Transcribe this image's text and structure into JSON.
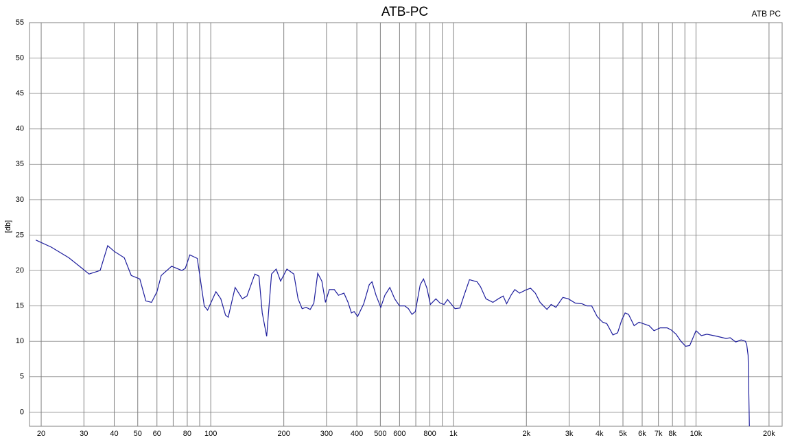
{
  "chart_data": {
    "type": "line",
    "title": "ATB-PC",
    "ylabel": "[db]",
    "xscale": "log",
    "grid": true,
    "legend": "top-right",
    "xlim": [
      17.9,
      22650
    ],
    "ylim": [
      -2,
      55
    ],
    "yticks": [
      0,
      5,
      10,
      15,
      20,
      25,
      30,
      35,
      40,
      45,
      50,
      55
    ],
    "xticks": [
      20,
      30,
      40,
      50,
      60,
      {
        "value": 70,
        "label": null
      },
      80,
      {
        "value": 90,
        "label": null
      },
      100,
      200,
      300,
      400,
      500,
      600,
      {
        "value": 700,
        "label": null
      },
      800,
      {
        "value": 900,
        "label": null
      },
      {
        "value": 1000,
        "label": "1k"
      },
      {
        "value": 2000,
        "label": "2k"
      },
      {
        "value": 3000,
        "label": "3k"
      },
      {
        "value": 4000,
        "label": "4k"
      },
      {
        "value": 5000,
        "label": "5k"
      },
      {
        "value": 6000,
        "label": "6k"
      },
      {
        "value": 7000,
        "label": "7k"
      },
      {
        "value": 8000,
        "label": "8k"
      },
      {
        "value": 9000,
        "label": null
      },
      {
        "value": 10000,
        "label": "10k"
      },
      {
        "value": 20000,
        "label": "20k"
      }
    ],
    "x": [
      19,
      22,
      26,
      29,
      31.5,
      35,
      37.6,
      40,
      44,
      47,
      51,
      54,
      57,
      60,
      62.5,
      69,
      76,
      78.5,
      82,
      88,
      94,
      97,
      105,
      110,
      115,
      118,
      126,
      135,
      141,
      152,
      158,
      163,
      170,
      178,
      186,
      194,
      206,
      220,
      229,
      238,
      247,
      257,
      266,
      276,
      287,
      297,
      308,
      323,
      336,
      354,
      368,
      380,
      390,
      403,
      427,
      450,
      462,
      480,
      502,
      522,
      547,
      573,
      600,
      631,
      653,
      675,
      697,
      730,
      753,
      778,
      804,
      847,
      881,
      916,
      946,
      978,
      1016,
      1064,
      1107,
      1165,
      1252,
      1294,
      1362,
      1455,
      1532,
      1604,
      1657,
      1734,
      1791,
      1875,
      1974,
      2080,
      2177,
      2277,
      2431,
      2528,
      2647,
      2826,
      2977,
      3179,
      3393,
      3550,
      3716,
      3915,
      4123,
      4288,
      4545,
      4753,
      4942,
      5104,
      5272,
      5559,
      5821,
      6414,
      6715,
      7123,
      7603,
      7906,
      8278,
      8669,
      9066,
      9424,
      10000,
      10520,
      11090,
      12230,
      13300,
      13830,
      14580,
      15350,
      15990,
      16190,
      16400,
      16600
    ],
    "series": [
      {
        "name": "ATB PC",
        "color": "#1c1c9c",
        "values": [
          24.3,
          23.3,
          21.8,
          20.5,
          19.5,
          20,
          23.5,
          22.7,
          21.8,
          19.3,
          18.8,
          15.7,
          15.5,
          17,
          19.3,
          20.6,
          20,
          20.3,
          22.2,
          21.7,
          15,
          14.4,
          17,
          16,
          13.7,
          13.4,
          17.6,
          16,
          16.4,
          19.5,
          19.2,
          14,
          10.7,
          19.5,
          20.2,
          18.5,
          20.2,
          19.5,
          16,
          14.6,
          14.8,
          14.5,
          15.4,
          19.6,
          18.5,
          15.5,
          17.3,
          17.3,
          16.5,
          16.8,
          15.5,
          14,
          14.2,
          13.5,
          15.3,
          18,
          18.4,
          16.5,
          14.8,
          16.5,
          17.6,
          16,
          15,
          15,
          14.6,
          13.8,
          14.2,
          18,
          18.8,
          17.5,
          15.2,
          16,
          15.4,
          15.2,
          15.9,
          15.3,
          14.6,
          14.7,
          16.5,
          18.7,
          18.4,
          17.7,
          16,
          15.5,
          16,
          16.4,
          15.3,
          16.6,
          17.3,
          16.8,
          17.2,
          17.5,
          16.8,
          15.5,
          14.5,
          15.2,
          14.8,
          16.2,
          16,
          15.4,
          15.3,
          15,
          15,
          13.5,
          12.7,
          12.5,
          10.9,
          11.2,
          13,
          14,
          13.8,
          12.2,
          12.7,
          12.2,
          11.5,
          11.9,
          11.9,
          11.6,
          11,
          10,
          9.3,
          9.4,
          11.5,
          10.8,
          11,
          10.7,
          10.4,
          10.5,
          9.9,
          10.2,
          10,
          9.5,
          8,
          -2
        ]
      }
    ]
  }
}
